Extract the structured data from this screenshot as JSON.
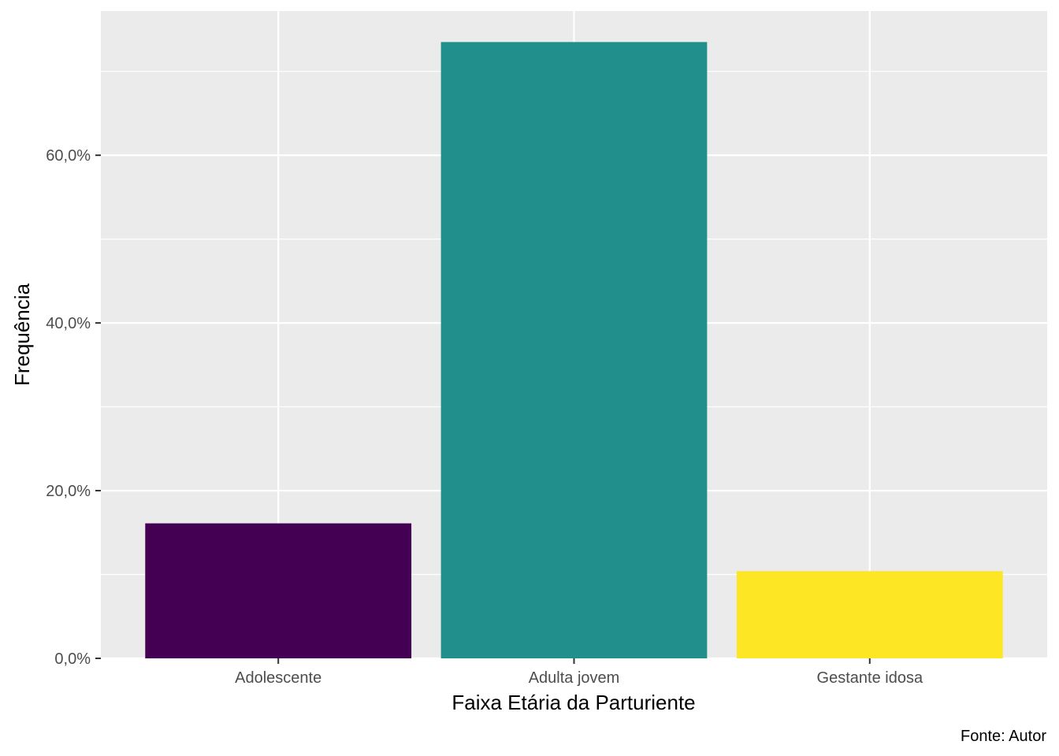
{
  "chart_data": {
    "type": "bar",
    "categories": [
      "Adolescente",
      "Adulta jovem",
      "Gestante idosa"
    ],
    "values": [
      16.1,
      73.5,
      10.4
    ],
    "colors": [
      "#440154",
      "#21908C",
      "#FDE725"
    ],
    "xlabel": "Faixa Etária da Parturiente",
    "ylabel": "Frequência",
    "ylim": [
      0,
      77.2
    ],
    "yticks": [
      0,
      20,
      40,
      60
    ],
    "ytick_labels": [
      "0,0%",
      "20,0%",
      "40,0%",
      "60,0%"
    ],
    "caption": "Fonte: Autor",
    "grid": true,
    "panel_background": "#EBEBEB",
    "grid_color": "#FFFFFF"
  }
}
